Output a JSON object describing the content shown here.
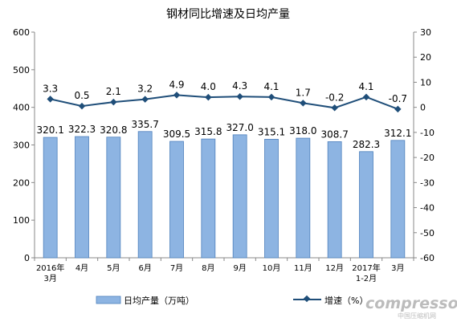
{
  "chart_data": {
    "type": "bar+line",
    "title": "钢材同比增速及日均产量",
    "categories": [
      [
        "2016年",
        "3月"
      ],
      [
        "4月"
      ],
      [
        "5月"
      ],
      [
        "6月"
      ],
      [
        "7月"
      ],
      [
        "8月"
      ],
      [
        "9月"
      ],
      [
        "10月"
      ],
      [
        "11月"
      ],
      [
        "12月"
      ],
      [
        "2017年",
        "1-2月"
      ],
      [
        "3月"
      ]
    ],
    "series": [
      {
        "name": "日均产量（万吨）",
        "type": "bar",
        "axis": "left",
        "color": "#8db4e2",
        "values": [
          320.1,
          322.3,
          320.8,
          335.7,
          309.5,
          315.8,
          327.0,
          315.1,
          318.0,
          308.7,
          282.3,
          312.1
        ],
        "labels": [
          "320.1",
          "322.3",
          "320.8",
          "335.7",
          "309.5",
          "315.8",
          "327.0",
          "315.1",
          "318.0",
          "308.7",
          "282.3",
          "312.1"
        ]
      },
      {
        "name": "增速（%）",
        "type": "line",
        "axis": "right",
        "color": "#1f4e79",
        "values": [
          3.3,
          0.5,
          2.1,
          3.2,
          4.9,
          4.0,
          4.3,
          4.1,
          1.7,
          -0.2,
          4.1,
          -0.7
        ],
        "labels": [
          "3.3",
          "0.5",
          "2.1",
          "3.2",
          "4.9",
          "4.0",
          "4.3",
          "4.1",
          "1.7",
          "-0.2",
          "4.1",
          "-0.7"
        ]
      }
    ],
    "y_left": {
      "min": 0,
      "max": 600,
      "ticks": [
        "0",
        "100",
        "200",
        "300",
        "400",
        "500",
        "600"
      ]
    },
    "y_right": {
      "min": -60,
      "max": 30,
      "ticks": [
        "-60",
        "-50",
        "-40",
        "-30",
        "-20",
        "-10",
        "0",
        "10",
        "20",
        "30"
      ]
    },
    "grid": false,
    "legend": "bottom"
  },
  "watermark": {
    "logo_text": "compressor.cn",
    "sub_text": "中国压缩机网"
  }
}
